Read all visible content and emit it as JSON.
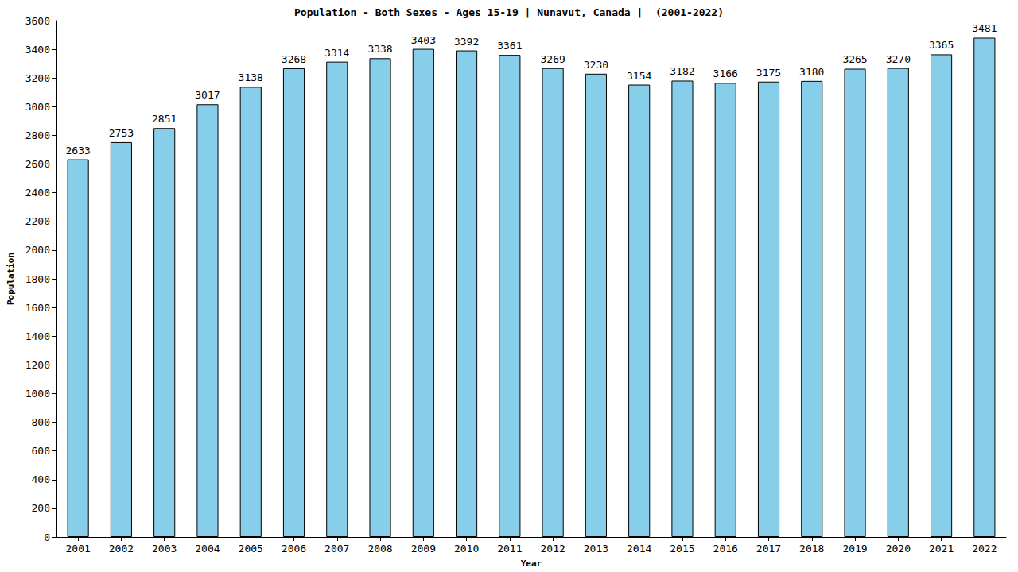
{
  "chart_data": {
    "type": "bar",
    "title": "Population - Both Sexes - Ages 15-19 | Nunavut, Canada |  (2001-2022)",
    "x_label": "Year",
    "y_label": "Population",
    "categories": [
      "2001",
      "2002",
      "2003",
      "2004",
      "2005",
      "2006",
      "2007",
      "2008",
      "2009",
      "2010",
      "2011",
      "2012",
      "2013",
      "2014",
      "2015",
      "2016",
      "2017",
      "2018",
      "2019",
      "2020",
      "2021",
      "2022"
    ],
    "values": [
      2633,
      2753,
      2851,
      3017,
      3138,
      3268,
      3314,
      3338,
      3403,
      3392,
      3361,
      3269,
      3230,
      3154,
      3182,
      3166,
      3175,
      3180,
      3265,
      3270,
      3365,
      3481
    ],
    "color": "#87ceeb",
    "ylim": [
      0,
      3600
    ],
    "yticks": [
      0,
      200,
      400,
      600,
      800,
      1000,
      1200,
      1400,
      1600,
      1800,
      2000,
      2200,
      2400,
      2600,
      2800,
      3000,
      3200,
      3400,
      3600
    ],
    "grid": false,
    "data_labels": true
  }
}
